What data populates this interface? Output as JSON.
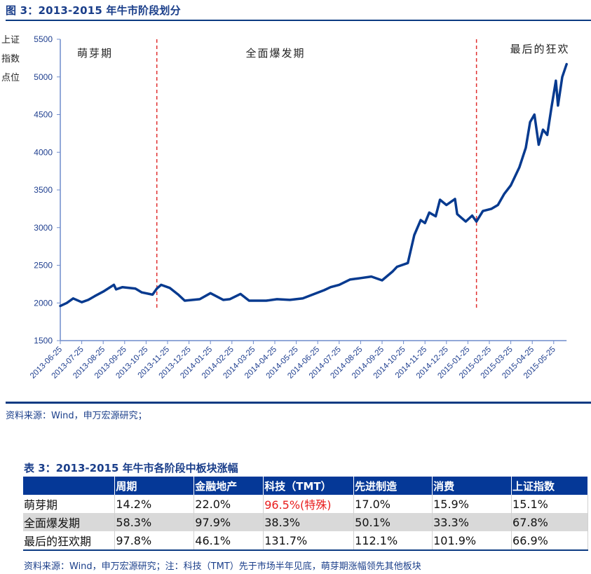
{
  "figure": {
    "title": "图 3：2013-2015 年牛市阶段划分",
    "y_axis_label": [
      "上证",
      "指数",
      "点位"
    ],
    "source": "资料来源：Wind，申万宏源研究；"
  },
  "chart_data": {
    "type": "line",
    "title": "2013-2015 年牛市阶段划分",
    "xlabel": "",
    "ylabel": "上证指数点位",
    "ylim": [
      1500,
      5500
    ],
    "yticks": [
      1500,
      2000,
      2500,
      3000,
      3500,
      4000,
      4500,
      5000,
      5500
    ],
    "xticks": [
      "2013-06-25",
      "2013-07-25",
      "2013-08-25",
      "2013-09-25",
      "2013-10-25",
      "2013-11-25",
      "2013-12-25",
      "2014-01-25",
      "2014-02-25",
      "2014-03-25",
      "2014-04-25",
      "2014-05-25",
      "2014-06-25",
      "2014-07-25",
      "2014-08-25",
      "2014-09-25",
      "2014-10-25",
      "2014-11-25",
      "2014-12-25",
      "2015-01-25",
      "2015-02-25",
      "2015-03-25",
      "2015-04-25",
      "2015-05-25"
    ],
    "xlim_months": [
      0,
      23.6
    ],
    "grid": false,
    "line_color": "#073a8f",
    "phases": [
      {
        "label": "萌芽期",
        "start_month": 0,
        "end_month": 4.5
      },
      {
        "label": "全面爆发期",
        "start_month": 4.5,
        "end_month": 19.4
      },
      {
        "label": "最后的狂欢",
        "start_month": 19.4,
        "end_month": 23.6
      }
    ],
    "divider_months": [
      4.5,
      19.4
    ],
    "divider_color": "#e03030",
    "series": [
      {
        "name": "上证指数",
        "x_months": [
          0,
          0.3,
          0.6,
          1.0,
          1.3,
          1.6,
          2.0,
          2.5,
          2.6,
          2.9,
          3.5,
          3.8,
          4.3,
          4.5,
          4.7,
          5.1,
          5.5,
          5.8,
          6.5,
          7.0,
          7.6,
          7.9,
          8.4,
          8.8,
          9.6,
          10.1,
          10.7,
          11.3,
          12.3,
          12.6,
          13.0,
          13.5,
          14.0,
          14.5,
          15.0,
          15.5,
          15.7,
          16.2,
          16.5,
          16.8,
          17.0,
          17.2,
          17.5,
          17.7,
          18.0,
          18.4,
          18.5,
          18.7,
          18.9,
          19.2,
          19.4,
          19.7,
          20.1,
          20.4,
          20.7,
          21.0,
          21.4,
          21.7,
          21.9,
          22.1,
          22.3,
          22.5,
          22.7,
          22.9,
          23.1,
          23.2,
          23.4,
          23.6
        ],
        "values": [
          1960,
          2000,
          2060,
          2010,
          2040,
          2090,
          2150,
          2240,
          2180,
          2210,
          2190,
          2140,
          2110,
          2190,
          2240,
          2200,
          2110,
          2030,
          2050,
          2130,
          2040,
          2050,
          2120,
          2030,
          2030,
          2050,
          2040,
          2060,
          2170,
          2210,
          2240,
          2310,
          2330,
          2350,
          2300,
          2420,
          2480,
          2530,
          2900,
          3100,
          3060,
          3200,
          3150,
          3370,
          3300,
          3380,
          3180,
          3130,
          3080,
          3160,
          3080,
          3220,
          3250,
          3300,
          3450,
          3560,
          3800,
          4060,
          4400,
          4500,
          4100,
          4300,
          4230,
          4600,
          4950,
          4620,
          5000,
          5170
        ]
      }
    ]
  },
  "table": {
    "title": "表 3：2013-2015 年牛市各阶段中板块涨幅",
    "headers": [
      "",
      "周期",
      "金融地产",
      "科技（TMT）",
      "先进制造",
      "消费",
      "上证指数"
    ],
    "rows": [
      {
        "phase": "萌芽期",
        "cells": [
          "14.2%",
          "22.0%",
          "96.5%(特殊)",
          "17.0%",
          "15.9%",
          "15.1%"
        ],
        "highlight_col": 2,
        "highlight_color": "#e81c1c"
      },
      {
        "phase": "全面爆发期",
        "cells": [
          "58.3%",
          "97.9%",
          "38.3%",
          "50.1%",
          "33.3%",
          "67.8%"
        ]
      },
      {
        "phase": "最后的狂欢期",
        "cells": [
          "97.8%",
          "46.1%",
          "131.7%",
          "112.1%",
          "101.9%",
          "66.9%"
        ]
      }
    ],
    "source": "资料来源：Wind，申万宏源研究；注：科技（TMT）先于市场半年见底，萌芽期涨幅领先其他板块"
  },
  "colors": {
    "brand_blue": "#053897",
    "title_blue": "#1a3e8a",
    "alt_row": "#d9d9d9",
    "highlight_red": "#e81c1c"
  }
}
